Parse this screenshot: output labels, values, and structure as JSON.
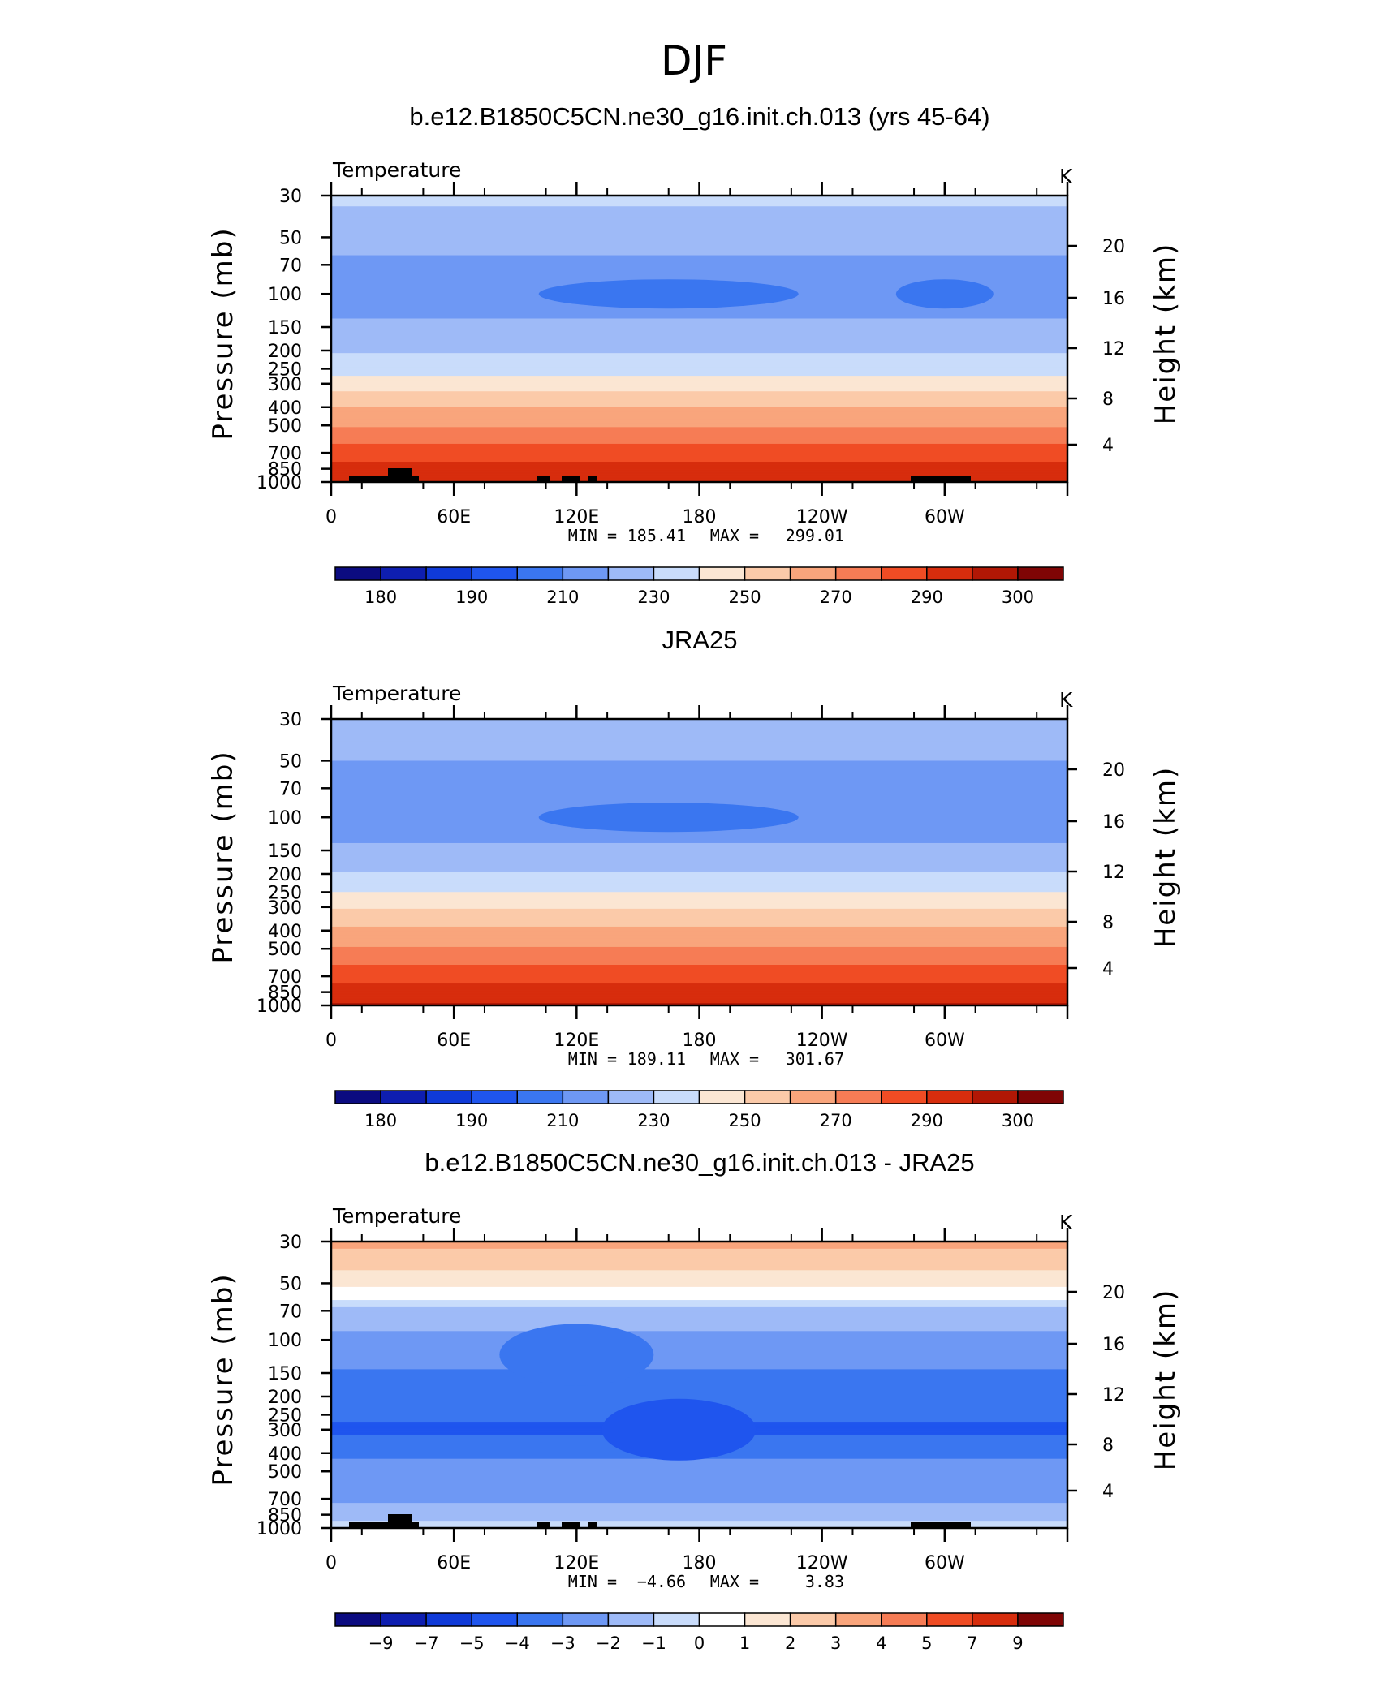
{
  "title": "DJF",
  "chart_data": [
    {
      "type": "heatmap",
      "title": "b.e12.B1850C5CN.ne30_g16.init.ch.013 (yrs 45-64)",
      "left_string": "Temperature",
      "right_string": "K",
      "xlabel": "",
      "ylabel": "Pressure (mb)",
      "y2label": "Height (km)",
      "x_ticks": [
        "0",
        "60E",
        "120E",
        "180",
        "120W",
        "60W"
      ],
      "y_ticks": [
        "30",
        "50",
        "70",
        "100",
        "150",
        "200",
        "250",
        "300",
        "400",
        "500",
        "700",
        "850",
        "1000"
      ],
      "y2_ticks": [
        "4",
        "8",
        "12",
        "16",
        "20"
      ],
      "ylim": [
        1000,
        30
      ],
      "y_scale": "log",
      "stats": {
        "min_label": "MIN =",
        "min": "185.41",
        "max_label": "MAX =",
        "max": "299.01"
      },
      "colorbar_labels": [
        "180",
        "190",
        "210",
        "230",
        "250",
        "270",
        "290",
        "300"
      ],
      "colorbar_levels": [
        175,
        180,
        185,
        190,
        200,
        210,
        220,
        230,
        240,
        250,
        260,
        270,
        280,
        290,
        295,
        300
      ],
      "profile": [
        {
          "p": 30,
          "v": 222
        },
        {
          "p": 50,
          "v": 214
        },
        {
          "p": 70,
          "v": 208
        },
        {
          "p": 100,
          "v": 204
        },
        {
          "p": 150,
          "v": 212
        },
        {
          "p": 200,
          "v": 219
        },
        {
          "p": 250,
          "v": 226
        },
        {
          "p": 300,
          "v": 235
        },
        {
          "p": 400,
          "v": 250
        },
        {
          "p": 500,
          "v": 259
        },
        {
          "p": 700,
          "v": 275
        },
        {
          "p": 850,
          "v": 284
        },
        {
          "p": 1000,
          "v": 289
        }
      ],
      "features": [
        {
          "lon": 165,
          "p": 100,
          "v": 193
        },
        {
          "lon": 300,
          "p": 100,
          "v": 196
        }
      ],
      "topography": true
    },
    {
      "type": "heatmap",
      "title": "JRA25",
      "left_string": "Temperature",
      "right_string": "K",
      "xlabel": "",
      "ylabel": "Pressure (mb)",
      "y2label": "Height (km)",
      "x_ticks": [
        "0",
        "60E",
        "120E",
        "180",
        "120W",
        "60W"
      ],
      "y_ticks": [
        "30",
        "50",
        "70",
        "100",
        "150",
        "200",
        "250",
        "300",
        "400",
        "500",
        "700",
        "850",
        "1000"
      ],
      "y2_ticks": [
        "4",
        "8",
        "12",
        "16",
        "20"
      ],
      "ylim": [
        1000,
        30
      ],
      "y_scale": "log",
      "stats": {
        "min_label": "MIN =",
        "min": "189.11",
        "max_label": "MAX =",
        "max": "301.67"
      },
      "colorbar_labels": [
        "180",
        "190",
        "210",
        "230",
        "250",
        "270",
        "290",
        "300"
      ],
      "colorbar_levels": [
        175,
        180,
        185,
        190,
        200,
        210,
        220,
        230,
        240,
        250,
        260,
        270,
        280,
        290,
        295,
        300
      ],
      "profile": [
        {
          "p": 30,
          "v": 219
        },
        {
          "p": 50,
          "v": 210
        },
        {
          "p": 70,
          "v": 206
        },
        {
          "p": 100,
          "v": 203
        },
        {
          "p": 150,
          "v": 212
        },
        {
          "p": 200,
          "v": 221
        },
        {
          "p": 250,
          "v": 230
        },
        {
          "p": 300,
          "v": 239
        },
        {
          "p": 400,
          "v": 252
        },
        {
          "p": 500,
          "v": 261
        },
        {
          "p": 700,
          "v": 276
        },
        {
          "p": 850,
          "v": 286
        },
        {
          "p": 1000,
          "v": 291
        }
      ],
      "features": [
        {
          "lon": 165,
          "p": 100,
          "v": 197
        }
      ],
      "topography": false
    },
    {
      "type": "heatmap",
      "title": "b.e12.B1850C5CN.ne30_g16.init.ch.013 - JRA25",
      "left_string": "Temperature",
      "right_string": "K",
      "xlabel": "",
      "ylabel": "Pressure (mb)",
      "y2label": "Height (km)",
      "x_ticks": [
        "0",
        "60E",
        "120E",
        "180",
        "120W",
        "60W"
      ],
      "y_ticks": [
        "30",
        "50",
        "70",
        "100",
        "150",
        "200",
        "250",
        "300",
        "400",
        "500",
        "700",
        "850",
        "1000"
      ],
      "y2_ticks": [
        "4",
        "8",
        "12",
        "16",
        "20"
      ],
      "ylim": [
        1000,
        30
      ],
      "y_scale": "log",
      "stats": {
        "min_label": "MIN =",
        "min": "−4.66",
        "max_label": "MAX =",
        "max": "3.83"
      },
      "colorbar_labels": [
        "−9",
        "−7",
        "−5",
        "−4",
        "−3",
        "−2",
        "−1",
        "0",
        "1",
        "2",
        "3",
        "4",
        "5",
        "7",
        "9"
      ],
      "colorbar_levels": [
        -9,
        -7,
        -5,
        -4,
        -3,
        -2,
        -1,
        0,
        1,
        2,
        3,
        4,
        5,
        7,
        9
      ],
      "profile": [
        {
          "p": 30,
          "v": 3.3
        },
        {
          "p": 40,
          "v": 2.3
        },
        {
          "p": 50,
          "v": 1.2
        },
        {
          "p": 60,
          "v": 0.3
        },
        {
          "p": 70,
          "v": -1.5
        },
        {
          "p": 100,
          "v": -2.2
        },
        {
          "p": 150,
          "v": -3.1
        },
        {
          "p": 200,
          "v": -3.4
        },
        {
          "p": 300,
          "v": -4.2
        },
        {
          "p": 400,
          "v": -3.2
        },
        {
          "p": 500,
          "v": -2.5
        },
        {
          "p": 600,
          "v": -2.8
        },
        {
          "p": 700,
          "v": -2.2
        },
        {
          "p": 850,
          "v": -1.4
        },
        {
          "p": 1000,
          "v": -0.6
        }
      ],
      "features": [
        {
          "lon": 170,
          "p": 300,
          "v": -4.4
        },
        {
          "lon": 120,
          "p": 120,
          "v": -3.6
        }
      ],
      "topography": true
    }
  ],
  "colors": {
    "temperature_palette": [
      "#0b0b80",
      "#0e1eb0",
      "#0f3ad8",
      "#1f55ee",
      "#3a76f0",
      "#6e98f4",
      "#9ebaf7",
      "#c9dcfb",
      "#fbe6d3",
      "#fbcaa9",
      "#f9a57c",
      "#f67c55",
      "#f04c24",
      "#d72d0d",
      "#b11705",
      "#7f0505"
    ],
    "difference_palette": [
      "#0b0b80",
      "#0e1eb0",
      "#0f3ad8",
      "#1f55ee",
      "#3a76f0",
      "#6e98f4",
      "#9ebaf7",
      "#c9dcfb",
      "#ffffff",
      "#fbe6d3",
      "#fbcaa9",
      "#f9a57c",
      "#f67c55",
      "#f04c24",
      "#d72d0d",
      "#7f0505"
    ],
    "topography": "#000000"
  }
}
